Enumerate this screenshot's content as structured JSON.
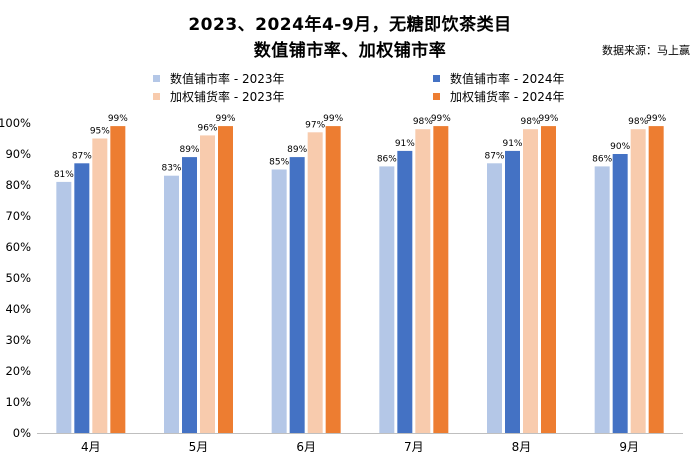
{
  "title_line1": "2023、2024年4-9月，无糖即饮茶类目",
  "title_line2": "数值铺市率、加权铺市率",
  "source": "数据来源：马上赢",
  "colors": {
    "numeric_2023": "#b4c7e7",
    "numeric_2024": "#4472c4",
    "weighted_2023": "#f8cbad",
    "weighted_2024": "#ed7d31"
  },
  "chart_data": {
    "type": "bar",
    "title": "2023、2024年4-9月，无糖即饮茶类目 数值铺市率、加权铺市率",
    "categories": [
      "4月",
      "5月",
      "6月",
      "7月",
      "8月",
      "9月"
    ],
    "ylim": [
      0,
      100
    ],
    "yticks": [
      "0%",
      "10%",
      "20%",
      "30%",
      "40%",
      "50%",
      "60%",
      "70%",
      "80%",
      "90%",
      "100%"
    ],
    "grid": false,
    "legend_position": "top",
    "series": [
      {
        "name": "数值铺市率 - 2023年",
        "values": [
          81,
          83,
          85,
          86,
          87,
          86
        ],
        "labels": [
          "81%",
          "83%",
          "85%",
          "86%",
          "87%",
          "86%"
        ]
      },
      {
        "name": "数值铺市率 - 2024年",
        "values": [
          87,
          89,
          89,
          91,
          91,
          90
        ],
        "labels": [
          "87%",
          "89%",
          "89%",
          "91%",
          "91%",
          "90%"
        ]
      },
      {
        "name": "加权铺货率 - 2023年",
        "values": [
          95,
          96,
          97,
          98,
          98,
          98
        ],
        "labels": [
          "95%",
          "96%",
          "97%",
          "98%",
          "98%",
          "98%"
        ]
      },
      {
        "name": "加权铺货率 - 2024年",
        "values": [
          99,
          99,
          99,
          99,
          99,
          99
        ],
        "labels": [
          "99%",
          "99%",
          "99%",
          "99%",
          "99%",
          "99%"
        ]
      }
    ]
  }
}
